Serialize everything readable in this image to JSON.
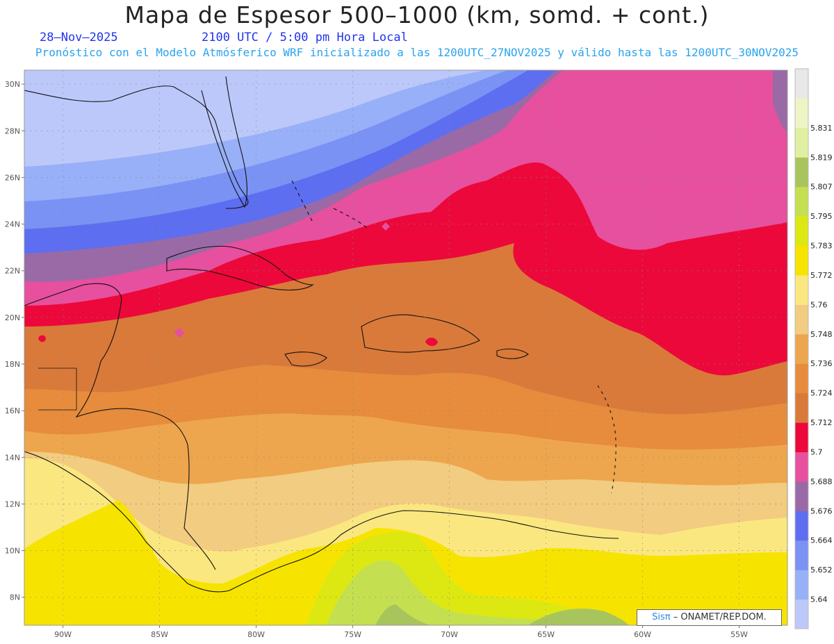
{
  "title": "Mapa de Espesor 500–1000 (km, somd. + cont.)",
  "date_label": "28–Nov–2025",
  "time_label": "2100 UTC / 5:00 pm Hora Local",
  "forecast_note": "Pronóstico con el Modelo Atmósferico WRF inicializado a las 1200UTC_27NOV2025 y válido hasta las  1200UTC_30NOV2025",
  "credit": {
    "system": "Sisπ",
    "org": "– ONAMET/REP.DOM."
  },
  "map": {
    "lon_range": [
      -92,
      -52.5
    ],
    "lat_range": [
      6.8,
      30.6
    ],
    "lon_ticks": [
      -90,
      -85,
      -80,
      -75,
      -70,
      -65,
      -60,
      -55
    ],
    "lat_ticks": [
      8,
      10,
      12,
      14,
      16,
      18,
      20,
      22,
      24,
      26,
      28,
      30
    ],
    "lon_tick_labels": [
      "90W",
      "85W",
      "80W",
      "75W",
      "70W",
      "65W",
      "60W",
      "55W"
    ],
    "lat_tick_labels": [
      "8N",
      "10N",
      "12N",
      "14N",
      "16N",
      "18N",
      "20N",
      "22N",
      "24N",
      "26N",
      "28N",
      "30N"
    ]
  },
  "colorbar": {
    "labels": [
      "5.64",
      "5.652",
      "5.664",
      "5.676",
      "5.688",
      "5.7",
      "5.712",
      "5.724",
      "5.736",
      "5.748",
      "5.76",
      "5.772",
      "5.783",
      "5.795",
      "5.807",
      "5.819",
      "5.831"
    ],
    "colors": [
      "#bcc8fa",
      "#98b0f8",
      "#7a92f4",
      "#5e6ef0",
      "#9a6aa6",
      "#e6509e",
      "#ec083a",
      "#d97a3a",
      "#e68c3c",
      "#eda64e",
      "#f2cc80",
      "#fbe780",
      "#f6e400",
      "#dde812",
      "#c4e050",
      "#a8c45c",
      "#e0f0a0",
      "#eef4c4",
      "#e8e8e8"
    ]
  }
}
